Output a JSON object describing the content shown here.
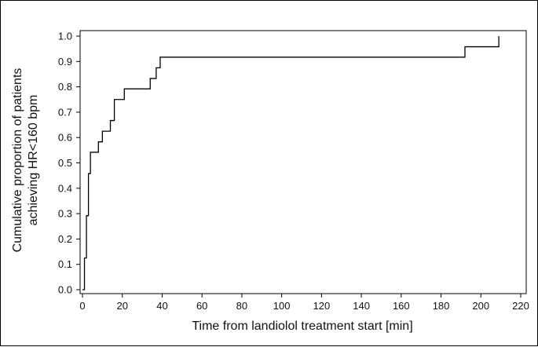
{
  "chart_data": {
    "type": "line",
    "subtype": "step",
    "title": "",
    "xlabel": "Time from landiolol treatment start [min]",
    "ylabel_lines": [
      "Cumulative proportion of patients",
      "achieving HR<160 bpm"
    ],
    "xlim": [
      0,
      220
    ],
    "ylim": [
      0,
      1.0
    ],
    "xticks": [
      0,
      20,
      40,
      60,
      80,
      100,
      120,
      140,
      160,
      180,
      200,
      220
    ],
    "yticks": [
      "0.0",
      "0.1",
      "0.2",
      "0.3",
      "0.4",
      "0.5",
      "0.6",
      "0.7",
      "0.8",
      "0.9",
      "1.0"
    ],
    "grid": false,
    "legend": "none",
    "line_color": "#000000",
    "series": [
      {
        "x": [
          0,
          1,
          2,
          3,
          4,
          8,
          10,
          14,
          16,
          21,
          34,
          37,
          39,
          192,
          209
        ],
        "y": [
          0.0,
          0.125,
          0.292,
          0.458,
          0.542,
          0.583,
          0.625,
          0.667,
          0.75,
          0.792,
          0.833,
          0.875,
          0.917,
          0.958,
          1.0
        ]
      }
    ]
  }
}
